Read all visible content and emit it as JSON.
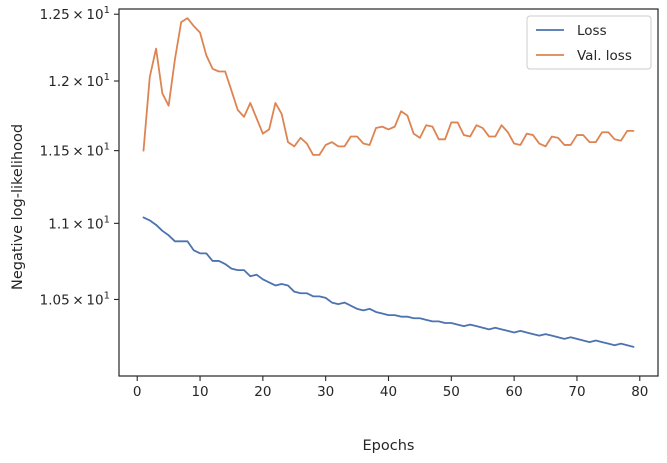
{
  "chart_data": {
    "type": "line",
    "title": "",
    "xlabel": "Epochs",
    "ylabel": "Negative log-likelihood",
    "xlim": [
      -2.9,
      82.9
    ],
    "ylim": [
      10.02,
      12.54
    ],
    "yscale": "log",
    "xticks": [
      0,
      10,
      20,
      30,
      40,
      50,
      60,
      70,
      80
    ],
    "xtick_labels": [
      "0",
      "10",
      "20",
      "30",
      "40",
      "50",
      "60",
      "70",
      "80"
    ],
    "yticks": [
      10.5,
      11.0,
      11.5,
      12.0,
      12.5
    ],
    "ytick_labels": [
      {
        "mant": "1.05",
        "exp": "1"
      },
      {
        "mant": "1.1",
        "exp": "1"
      },
      {
        "mant": "1.15",
        "exp": "1"
      },
      {
        "mant": "1.2",
        "exp": "1"
      },
      {
        "mant": "1.25",
        "exp": "1"
      }
    ],
    "grid": false,
    "legend_position": "top-right",
    "x": [
      1,
      2,
      3,
      4,
      5,
      6,
      7,
      8,
      9,
      10,
      11,
      12,
      13,
      14,
      15,
      16,
      17,
      18,
      19,
      20,
      21,
      22,
      23,
      24,
      25,
      26,
      27,
      28,
      29,
      30,
      31,
      32,
      33,
      34,
      35,
      36,
      37,
      38,
      39,
      40,
      41,
      42,
      43,
      44,
      45,
      46,
      47,
      48,
      49,
      50,
      51,
      52,
      53,
      54,
      55,
      56,
      57,
      58,
      59,
      60,
      61,
      62,
      63,
      64,
      65,
      66,
      67,
      68,
      69,
      70,
      71,
      72,
      73,
      74,
      75,
      76,
      77,
      78,
      79
    ],
    "series": [
      {
        "name": "Loss",
        "color": "#4c72b0",
        "values": [
          11.04,
          11.02,
          10.99,
          10.95,
          10.92,
          10.88,
          10.88,
          10.88,
          10.82,
          10.8,
          10.8,
          10.75,
          10.75,
          10.73,
          10.7,
          10.69,
          10.69,
          10.65,
          10.66,
          10.63,
          10.61,
          10.59,
          10.6,
          10.59,
          10.55,
          10.54,
          10.54,
          10.52,
          10.52,
          10.51,
          10.48,
          10.47,
          10.48,
          10.46,
          10.44,
          10.43,
          10.44,
          10.42,
          10.41,
          10.4,
          10.4,
          10.39,
          10.39,
          10.38,
          10.38,
          10.37,
          10.36,
          10.36,
          10.35,
          10.35,
          10.34,
          10.33,
          10.34,
          10.33,
          10.32,
          10.31,
          10.32,
          10.31,
          10.3,
          10.29,
          10.3,
          10.29,
          10.28,
          10.27,
          10.28,
          10.27,
          10.26,
          10.25,
          10.26,
          10.25,
          10.24,
          10.23,
          10.24,
          10.23,
          10.22,
          10.21,
          10.22,
          10.21,
          10.2
        ]
      },
      {
        "name": "Val. loss",
        "color": "#dd8452",
        "values": [
          11.5,
          12.03,
          12.24,
          11.91,
          11.82,
          12.16,
          12.44,
          12.47,
          12.41,
          12.36,
          12.19,
          12.09,
          12.07,
          12.07,
          11.93,
          11.79,
          11.74,
          11.84,
          11.73,
          11.62,
          11.65,
          11.84,
          11.76,
          11.56,
          11.53,
          11.59,
          11.55,
          11.47,
          11.47,
          11.54,
          11.56,
          11.53,
          11.53,
          11.6,
          11.6,
          11.55,
          11.54,
          11.66,
          11.67,
          11.65,
          11.67,
          11.78,
          11.75,
          11.62,
          11.59,
          11.68,
          11.67,
          11.58,
          11.58,
          11.7,
          11.7,
          11.61,
          11.6,
          11.68,
          11.66,
          11.6,
          11.6,
          11.68,
          11.63,
          11.55,
          11.54,
          11.62,
          11.61,
          11.55,
          11.53,
          11.6,
          11.59,
          11.54,
          11.54,
          11.61,
          11.61,
          11.56,
          11.56,
          11.63,
          11.63,
          11.58,
          11.57,
          11.64,
          11.64
        ]
      }
    ]
  }
}
